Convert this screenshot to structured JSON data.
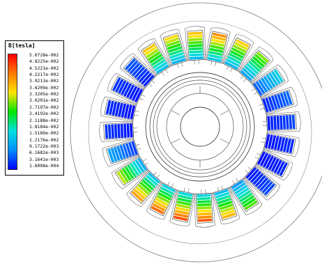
{
  "legend": {
    "title": "B[tesla]",
    "labels": [
      "5.0728e-002",
      "4.8225e-002",
      "4.5221e-002",
      "4.2217e-002",
      "3.9213e-002",
      "3.6209e-002",
      "3.3205e-002",
      "3.0201e-002",
      "2.7197e-002",
      "2.4192e-002",
      "2.1188e-002",
      "1.8184e-002",
      "1.5180e-002",
      "1.2176e-002",
      "9.1722e-003",
      "6.1682e-003",
      "3.1641e-003",
      "1.6008e-004"
    ],
    "colors": [
      "#ff0000",
      "#ff7a00",
      "#ffe400",
      "#00e600",
      "#00e0e0",
      "#0090ff",
      "#0000ff"
    ]
  },
  "field_plot": {
    "slot_count": 24,
    "slot_field_levels": [
      0.72,
      0.8,
      0.7,
      0.58,
      0.3,
      0.12,
      0.08,
      0.05,
      0.04,
      0.08,
      0.55,
      0.74,
      0.88,
      0.9,
      0.86,
      0.78,
      0.62,
      0.2,
      0.06,
      0.05,
      0.06,
      0.1,
      0.72,
      0.68
    ],
    "colors": {
      "outline": "#555555",
      "background": "#ffffff"
    }
  }
}
